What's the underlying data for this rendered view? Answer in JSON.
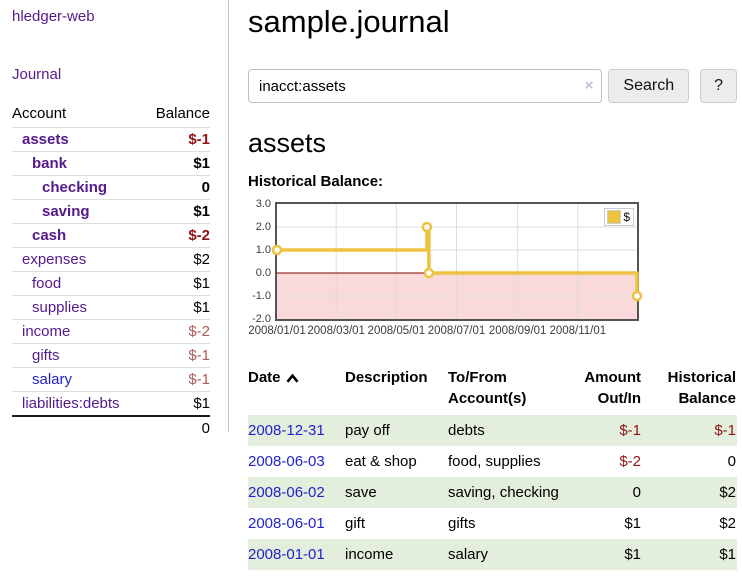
{
  "app": {
    "brand": "hledger-web"
  },
  "sidebar": {
    "journal_link": "Journal",
    "accounts_table": {
      "account_header": "Account",
      "balance_header": "Balance",
      "rows": [
        {
          "name": "assets",
          "indent": 1,
          "bold": true,
          "balance": "$-1",
          "negative": true
        },
        {
          "name": "bank",
          "indent": 2,
          "bold": true,
          "balance": "$1",
          "negative": false
        },
        {
          "name": "checking",
          "indent": 3,
          "bold": true,
          "balance": "0",
          "negative": false
        },
        {
          "name": "saving",
          "indent": 3,
          "bold": true,
          "balance": "$1",
          "negative": false
        },
        {
          "name": "cash",
          "indent": 2,
          "bold": true,
          "balance": "$-2",
          "negative": true
        },
        {
          "name": "expenses",
          "indent": 1,
          "bold": false,
          "balance": "$2",
          "negative": false
        },
        {
          "name": "food",
          "indent": 2,
          "bold": false,
          "balance": "$1",
          "negative": false
        },
        {
          "name": "supplies",
          "indent": 2,
          "bold": false,
          "balance": "$1",
          "negative": false
        },
        {
          "name": "income",
          "indent": 1,
          "bold": false,
          "balance": "$-2",
          "negative": true
        },
        {
          "name": "gifts",
          "indent": 2,
          "bold": false,
          "balance": "$-1",
          "negative": true
        },
        {
          "name": "salary",
          "indent": 2,
          "bold": false,
          "balance": "$-1",
          "negative": true,
          "link_color": "blue"
        },
        {
          "name": "liabilities:debts",
          "indent": 1,
          "bold": false,
          "balance": "$1",
          "negative": false
        }
      ],
      "total": "0"
    }
  },
  "main": {
    "title": "sample.journal",
    "search": {
      "value": "inacct:assets",
      "clear_glyph": "×",
      "button_label": "Search",
      "help_label": "?"
    },
    "account_heading": "assets",
    "chart_heading": "Historical Balance:"
  },
  "chart_data": {
    "type": "line",
    "title": "Historical Balance",
    "step": "after",
    "series": [
      {
        "name": "$",
        "color": "#edc240",
        "points": [
          [
            "2008-01-01",
            1
          ],
          [
            "2008-06-01",
            2
          ],
          [
            "2008-06-03",
            0
          ],
          [
            "2008-12-31",
            -1
          ]
        ]
      }
    ],
    "ylim": [
      -2,
      3
    ],
    "yticks": [
      "3.0",
      "2.0",
      "1.0",
      "0.0",
      "-1.0",
      "-2.0"
    ],
    "xticks": [
      "2008/01/01",
      "2008/03/01",
      "2008/05/01",
      "2008/07/01",
      "2008/09/01",
      "2008/11/01"
    ],
    "xrange": [
      "2008/01/01",
      "2008/12/31"
    ],
    "grid": true,
    "legend_position": "top-right",
    "legend_label": "$",
    "colors": {
      "negative_region": "#f9d9d9",
      "zero_line": "#800000",
      "gridline": "#dcdcdc",
      "plot_border": "#545454"
    }
  },
  "register_table": {
    "headers": {
      "date": "Date",
      "description": "Description",
      "accounts": "To/From Account(s)",
      "amount": "Amount Out/In",
      "balance": "Historical Balance"
    },
    "rows": [
      {
        "date": "2008-12-31",
        "description": "pay off",
        "accounts": "debts",
        "amount": "$-1",
        "amount_neg": true,
        "balance": "$-1",
        "balance_neg": true
      },
      {
        "date": "2008-06-03",
        "description": "eat & shop",
        "accounts": "food, supplies",
        "amount": "$-2",
        "amount_neg": true,
        "balance": "0",
        "balance_neg": false
      },
      {
        "date": "2008-06-02",
        "description": "save",
        "accounts": "saving, checking",
        "amount": "0",
        "amount_neg": false,
        "balance": "$2",
        "balance_neg": false
      },
      {
        "date": "2008-06-01",
        "description": "gift",
        "accounts": "gifts",
        "amount": "$1",
        "amount_neg": false,
        "balance": "$2",
        "balance_neg": false
      },
      {
        "date": "2008-01-01",
        "description": "income",
        "accounts": "salary",
        "amount": "$1",
        "amount_neg": false,
        "balance": "$1",
        "balance_neg": false
      }
    ]
  }
}
